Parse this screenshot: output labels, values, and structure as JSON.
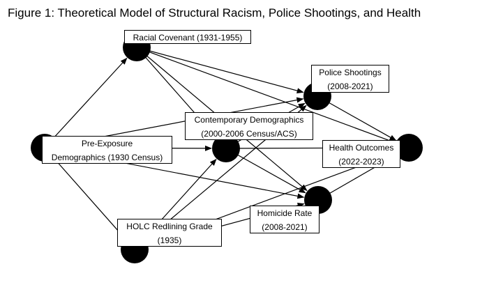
{
  "figure": {
    "title": "Figure 1: Theoretical Model of Structural Racism, Police Shootings, and Health"
  },
  "nodes": {
    "racial_covenant": {
      "line1": "Racial Covenant (1931-1955)"
    },
    "police_shootings": {
      "line1": "Police Shootings",
      "line2": "(2008-2021)"
    },
    "contemporary_demographics": {
      "line1": "Contemporary Demographics",
      "line2": "(2000-2006 Census/ACS)"
    },
    "pre_exposure": {
      "line1": "Pre-Exposure",
      "line2": "Demographics (1930 Census)"
    },
    "health_outcomes": {
      "line1": "Health Outcomes",
      "line2": "(2022-2023)"
    },
    "homicide_rate": {
      "line1": "Homicide Rate",
      "line2": "(2008-2021)"
    },
    "holc_redlining": {
      "line1": "HOLC Redlining Grade",
      "line2": "(1935)"
    }
  },
  "edges": [
    [
      "pre_exposure",
      "racial_covenant"
    ],
    [
      "pre_exposure",
      "contemporary_demographics"
    ],
    [
      "pre_exposure",
      "police_shootings"
    ],
    [
      "pre_exposure",
      "homicide_rate"
    ],
    [
      "pre_exposure",
      "holc_redlining"
    ],
    [
      "racial_covenant",
      "police_shootings"
    ],
    [
      "racial_covenant",
      "health_outcomes"
    ],
    [
      "racial_covenant",
      "contemporary_demographics"
    ],
    [
      "racial_covenant",
      "homicide_rate"
    ],
    [
      "holc_redlining",
      "contemporary_demographics"
    ],
    [
      "holc_redlining",
      "police_shootings"
    ],
    [
      "holc_redlining",
      "homicide_rate"
    ],
    [
      "holc_redlining",
      "health_outcomes"
    ],
    [
      "contemporary_demographics",
      "police_shootings"
    ],
    [
      "contemporary_demographics",
      "health_outcomes"
    ],
    [
      "contemporary_demographics",
      "homicide_rate"
    ],
    [
      "police_shootings",
      "health_outcomes"
    ],
    [
      "homicide_rate",
      "health_outcomes"
    ]
  ]
}
